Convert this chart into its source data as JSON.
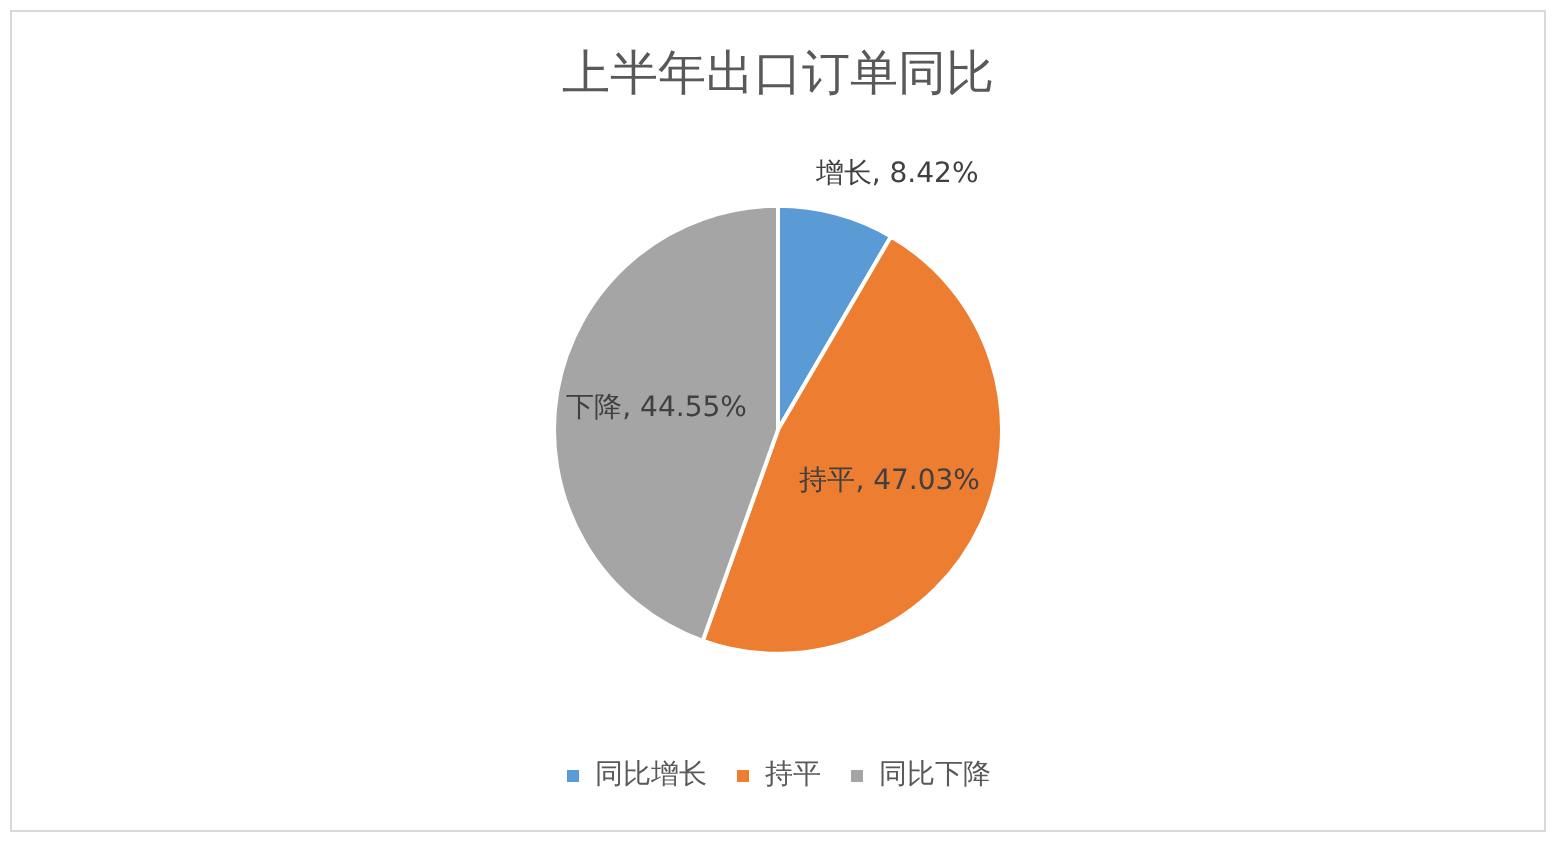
{
  "chart_data": {
    "type": "pie",
    "title": "上半年出口订单同比",
    "categories": [
      "同比增长",
      "持平",
      "同比下降"
    ],
    "values": [
      8.42,
      47.03,
      44.55
    ],
    "colors": [
      "#5b9bd5",
      "#ed7d31",
      "#a5a5a5"
    ],
    "value_labels": [
      "增长, 8.42%",
      "持平, 47.03%",
      "下降, 44.55%"
    ],
    "legend": "bottom"
  }
}
